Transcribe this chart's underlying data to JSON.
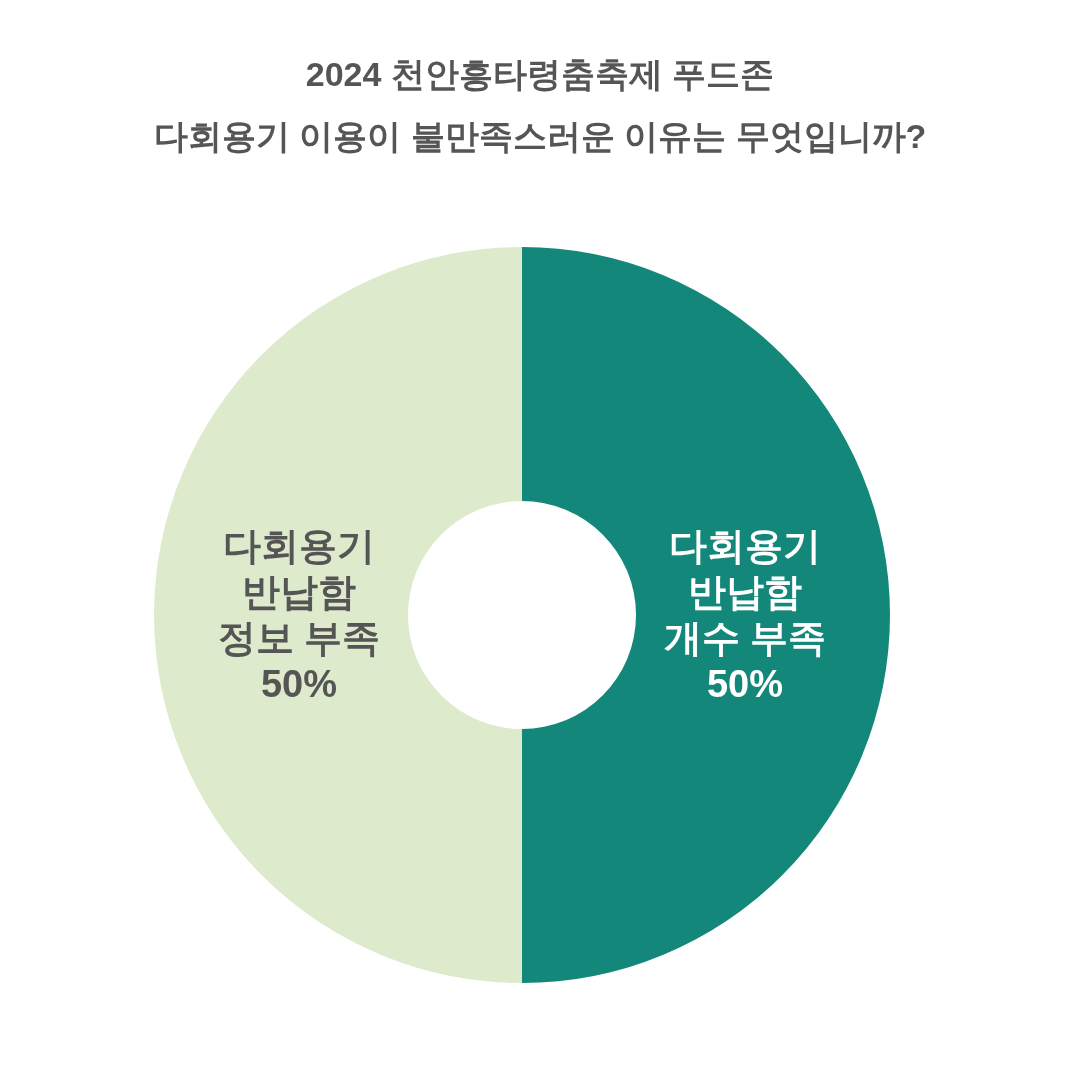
{
  "chart_data": {
    "type": "donut",
    "title": "2024 천안흥타령춤축제 푸드존\n다회용기 이용이 불만족스러운 이유는 무엇입니까?",
    "categories": [
      "다회용기 반납함 개수 부족",
      "다회용기 반납함 정보 부족"
    ],
    "values": [
      50,
      50
    ],
    "colors": [
      "#13887a",
      "#ddebcc"
    ],
    "value_labels": [
      "50%",
      "50%"
    ],
    "legend": false
  }
}
